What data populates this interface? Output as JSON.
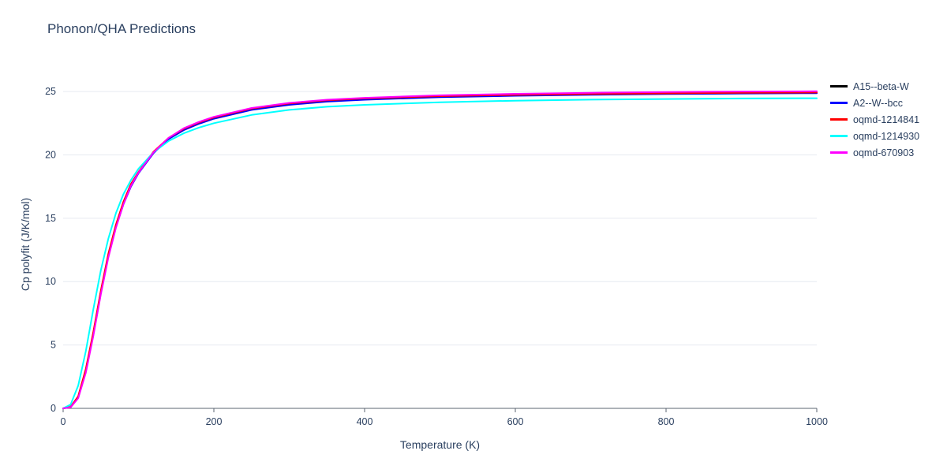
{
  "chart_data": {
    "type": "line",
    "title": "Phonon/QHA Predictions",
    "xlabel": "Temperature (K)",
    "ylabel": "Cp polyfit (J/K/mol)",
    "xlim": [
      0,
      1000
    ],
    "ylim": [
      0,
      26
    ],
    "xticks": [
      0,
      200,
      400,
      600,
      800,
      1000
    ],
    "yticks": [
      0,
      5,
      10,
      15,
      20,
      25
    ],
    "grid": "horizontal",
    "legend_position": "top-right-outside",
    "colors": {
      "grid": "#e6eaf1",
      "axis": "#5b6472",
      "text": "#2a3f5f",
      "background": "#ffffff"
    },
    "x": [
      0,
      10,
      20,
      30,
      40,
      50,
      60,
      70,
      80,
      90,
      100,
      120,
      140,
      160,
      180,
      200,
      250,
      300,
      350,
      400,
      500,
      600,
      700,
      800,
      900,
      1000
    ],
    "series": [
      {
        "name": "A15--beta-W",
        "color": "#000000",
        "values": [
          0,
          0.1,
          0.9,
          3.0,
          5.9,
          9.2,
          12.1,
          14.4,
          16.2,
          17.6,
          18.6,
          20.2,
          21.3,
          22.0,
          22.5,
          22.9,
          23.6,
          24.0,
          24.25,
          24.4,
          24.6,
          24.7,
          24.78,
          24.83,
          24.87,
          24.9
        ]
      },
      {
        "name": "A2--W--bcc",
        "color": "#0000ff",
        "values": [
          0,
          0.1,
          0.85,
          2.9,
          5.8,
          9.1,
          12.0,
          14.3,
          16.1,
          17.5,
          18.55,
          20.15,
          21.25,
          21.95,
          22.45,
          22.85,
          23.55,
          23.95,
          24.2,
          24.35,
          24.55,
          24.66,
          24.74,
          24.8,
          24.84,
          24.87
        ]
      },
      {
        "name": "oqmd-1214841",
        "color": "#ff0000",
        "values": [
          0,
          0.12,
          0.95,
          3.1,
          6.0,
          9.3,
          12.2,
          14.5,
          16.3,
          17.7,
          18.65,
          20.25,
          21.35,
          22.05,
          22.55,
          22.95,
          23.65,
          24.05,
          24.3,
          24.45,
          24.63,
          24.73,
          24.8,
          24.85,
          24.89,
          24.92
        ]
      },
      {
        "name": "oqmd-1214930",
        "color": "#00ffff",
        "values": [
          0,
          0.3,
          1.8,
          4.5,
          7.8,
          10.9,
          13.4,
          15.4,
          16.9,
          18.0,
          18.9,
          20.2,
          21.1,
          21.7,
          22.15,
          22.5,
          23.15,
          23.55,
          23.8,
          23.95,
          24.15,
          24.28,
          24.36,
          24.41,
          24.45,
          24.47
        ]
      },
      {
        "name": "oqmd-670903",
        "color": "#ff00ff",
        "values": [
          0,
          0.08,
          0.8,
          2.8,
          5.7,
          9.0,
          11.9,
          14.25,
          16.1,
          17.55,
          18.6,
          20.2,
          21.35,
          22.1,
          22.6,
          23.0,
          23.7,
          24.1,
          24.35,
          24.5,
          24.7,
          24.82,
          24.9,
          24.96,
          25.0,
          25.02
        ]
      }
    ]
  }
}
